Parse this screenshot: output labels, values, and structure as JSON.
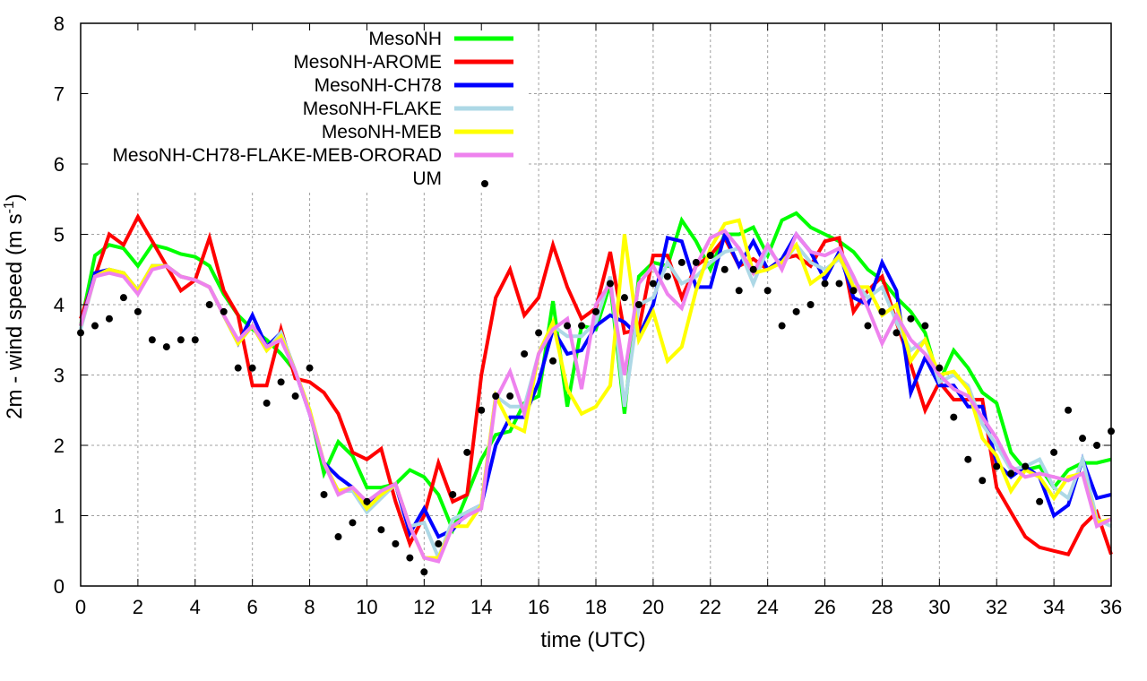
{
  "chart_data": {
    "type": "line",
    "title": "",
    "xlabel": "time (UTC)",
    "ylabel_main": "2m - wind speed  (m s",
    "ylabel_sup": "-1",
    "ylabel_close": ")",
    "xlim": [
      0,
      36
    ],
    "ylim": [
      0,
      8
    ],
    "xticks": [
      "0",
      "2",
      "4",
      "6",
      "8",
      "10",
      "12",
      "14",
      "16",
      "18",
      "20",
      "22",
      "24",
      "26",
      "28",
      "30",
      "32",
      "34",
      "36"
    ],
    "yticks": [
      "0",
      "1",
      "2",
      "3",
      "4",
      "5",
      "6",
      "7",
      "8"
    ],
    "grid": true,
    "legend_position": "top-left",
    "x": [
      0,
      0.5,
      1,
      1.5,
      2,
      2.5,
      3,
      3.5,
      4,
      4.5,
      5,
      5.5,
      6,
      6.5,
      7,
      7.5,
      8,
      8.5,
      9,
      9.5,
      10,
      10.5,
      11,
      11.5,
      12,
      12.5,
      13,
      13.5,
      14,
      14.5,
      15,
      15.5,
      16,
      16.5,
      17,
      17.5,
      18,
      18.5,
      19,
      19.5,
      20,
      20.5,
      21,
      21.5,
      22,
      22.5,
      23,
      23.5,
      24,
      24.5,
      25,
      25.5,
      26,
      26.5,
      27,
      27.5,
      28,
      28.5,
      29,
      29.5,
      30,
      30.5,
      31,
      31.5,
      32,
      32.5,
      33,
      33.5,
      34,
      34.5,
      35,
      35.5,
      36
    ],
    "series": [
      {
        "name": "MesoNH",
        "color": "#00ff00",
        "style": "line",
        "values": [
          3.7,
          4.7,
          4.85,
          4.8,
          4.55,
          4.85,
          4.8,
          4.72,
          4.68,
          4.55,
          4.15,
          3.85,
          3.65,
          3.5,
          3.3,
          3.05,
          2.5,
          1.6,
          2.05,
          1.85,
          1.4,
          1.4,
          1.45,
          1.65,
          1.55,
          1.3,
          0.8,
          1.3,
          1.8,
          2.15,
          2.2,
          2.6,
          2.7,
          4.05,
          2.55,
          3.7,
          3.65,
          4.3,
          2.45,
          4.4,
          4.6,
          4.55,
          5.2,
          4.9,
          4.5,
          5.0,
          5.0,
          5.1,
          4.7,
          5.2,
          5.3,
          5.1,
          5.0,
          4.9,
          4.75,
          4.5,
          4.35,
          4.1,
          3.9,
          3.6,
          2.9,
          3.35,
          3.1,
          2.75,
          2.6,
          1.9,
          1.65,
          1.7,
          1.4,
          1.65,
          1.75,
          1.75,
          1.8
        ]
      },
      {
        "name": "MesoNH-AROME",
        "color": "#ff0000",
        "style": "line",
        "values": [
          3.8,
          4.4,
          5.0,
          4.85,
          5.25,
          4.9,
          4.55,
          4.2,
          4.35,
          4.95,
          4.2,
          3.85,
          2.85,
          2.85,
          3.65,
          2.95,
          2.9,
          2.75,
          2.45,
          1.9,
          1.8,
          1.95,
          1.2,
          0.6,
          1.0,
          1.75,
          1.2,
          1.3,
          3.0,
          4.1,
          4.5,
          3.85,
          4.1,
          4.85,
          4.25,
          3.8,
          3.95,
          4.75,
          3.6,
          3.65,
          4.7,
          4.7,
          4.1,
          4.55,
          4.7,
          4.95,
          4.55,
          4.65,
          4.5,
          4.65,
          4.7,
          4.55,
          4.9,
          4.95,
          3.9,
          4.2,
          4.4,
          3.75,
          3.15,
          2.5,
          2.9,
          2.65,
          2.65,
          2.65,
          1.4,
          1.05,
          0.7,
          0.55,
          0.5,
          0.45,
          0.85,
          1.05,
          0.45
        ]
      },
      {
        "name": "MesoNH-CH78",
        "color": "#0000ff",
        "style": "line",
        "values": [
          3.7,
          4.45,
          4.5,
          4.45,
          4.2,
          4.55,
          4.55,
          4.4,
          4.35,
          4.25,
          3.85,
          3.45,
          3.85,
          3.4,
          3.6,
          3.05,
          2.45,
          1.75,
          1.55,
          1.4,
          1.15,
          1.3,
          1.45,
          0.75,
          1.1,
          0.7,
          0.8,
          1.05,
          1.15,
          2.0,
          2.4,
          2.4,
          2.9,
          3.65,
          3.3,
          3.35,
          3.7,
          3.85,
          3.75,
          3.55,
          4.0,
          4.95,
          4.9,
          4.25,
          4.25,
          5.0,
          4.55,
          4.9,
          4.5,
          4.65,
          5.0,
          4.75,
          4.35,
          4.75,
          4.1,
          4.0,
          4.6,
          4.2,
          2.75,
          3.25,
          2.85,
          2.85,
          2.55,
          2.55,
          1.75,
          1.55,
          1.7,
          1.55,
          1.0,
          1.15,
          1.8,
          1.25,
          1.3
        ]
      },
      {
        "name": "MesoNH-FLAKE",
        "color": "#add8e6",
        "style": "line",
        "values": [
          3.65,
          4.4,
          4.5,
          4.45,
          4.2,
          4.55,
          4.55,
          4.4,
          4.35,
          4.25,
          3.85,
          3.45,
          3.7,
          3.35,
          3.6,
          3.05,
          2.5,
          1.75,
          1.35,
          1.35,
          1.05,
          1.25,
          1.45,
          0.85,
          0.9,
          0.4,
          0.95,
          1.05,
          1.15,
          2.7,
          2.55,
          2.55,
          3.3,
          3.7,
          3.55,
          3.55,
          3.75,
          4.4,
          2.55,
          4.0,
          4.1,
          4.6,
          4.3,
          4.4,
          4.6,
          4.75,
          4.8,
          4.3,
          4.8,
          4.55,
          4.85,
          4.6,
          4.5,
          4.65,
          4.35,
          4.1,
          4.25,
          3.75,
          3.35,
          3.5,
          2.9,
          3.0,
          2.85,
          2.3,
          2.0,
          1.65,
          1.7,
          1.8,
          1.4,
          1.25,
          1.8,
          0.95,
          0.85
        ]
      },
      {
        "name": "MesoNH-MEB",
        "color": "#ffff00",
        "style": "line",
        "values": [
          3.7,
          4.4,
          4.5,
          4.45,
          4.2,
          4.55,
          4.55,
          4.4,
          4.35,
          4.25,
          3.85,
          3.45,
          3.7,
          3.35,
          3.55,
          3.05,
          2.5,
          1.75,
          1.35,
          1.4,
          1.1,
          1.3,
          1.45,
          0.85,
          0.4,
          0.4,
          0.85,
          0.85,
          1.15,
          2.7,
          2.3,
          2.2,
          3.3,
          3.75,
          2.8,
          2.45,
          2.55,
          2.85,
          5.0,
          3.5,
          3.9,
          3.2,
          3.4,
          4.2,
          4.8,
          5.15,
          5.2,
          4.45,
          4.5,
          4.6,
          4.85,
          4.3,
          4.45,
          4.7,
          4.25,
          4.25,
          3.85,
          4.0,
          3.2,
          3.5,
          3.0,
          3.05,
          2.8,
          2.1,
          1.85,
          1.35,
          1.65,
          1.55,
          1.25,
          1.55,
          1.6,
          0.9,
          0.95
        ]
      },
      {
        "name": "MesoNH-CH78-FLAKE-MEB-ORORAD",
        "color": "#ee82ee",
        "style": "line",
        "values": [
          3.7,
          4.4,
          4.45,
          4.4,
          4.15,
          4.5,
          4.55,
          4.4,
          4.35,
          4.25,
          3.85,
          3.5,
          3.7,
          3.4,
          3.5,
          3.05,
          2.45,
          1.75,
          1.3,
          1.4,
          1.2,
          1.35,
          1.45,
          0.85,
          0.4,
          0.35,
          0.85,
          1.0,
          1.1,
          2.65,
          3.05,
          2.45,
          3.3,
          3.65,
          3.8,
          2.8,
          4.0,
          4.3,
          3.0,
          4.3,
          4.55,
          4.15,
          3.95,
          4.55,
          4.95,
          5.05,
          4.8,
          4.45,
          4.85,
          4.5,
          5.0,
          4.75,
          4.7,
          4.8,
          4.4,
          3.95,
          3.45,
          3.85,
          3.5,
          3.3,
          3.0,
          2.8,
          2.7,
          2.4,
          2.1,
          1.7,
          1.55,
          1.6,
          1.55,
          1.5,
          1.6,
          0.85,
          0.95
        ]
      },
      {
        "name": "UM",
        "color": "#000000",
        "style": "points",
        "values": [
          3.6,
          3.7,
          3.8,
          4.1,
          3.9,
          3.5,
          3.4,
          3.5,
          3.5,
          4.0,
          3.9,
          3.1,
          3.1,
          2.6,
          2.9,
          2.7,
          3.1,
          1.3,
          0.7,
          0.9,
          1.2,
          0.8,
          0.6,
          0.4,
          0.2,
          0.6,
          1.3,
          1.9,
          2.5,
          2.7,
          2.7,
          3.3,
          3.6,
          3.2,
          3.7,
          3.7,
          3.9,
          4.3,
          4.1,
          4.0,
          4.3,
          4.4,
          4.6,
          4.6,
          4.7,
          4.5,
          4.2,
          4.5,
          4.2,
          3.7,
          3.9,
          4.0,
          4.3,
          4.3,
          4.2,
          3.7,
          3.9,
          3.6,
          3.8,
          3.7,
          3.1,
          2.4,
          1.8,
          1.5,
          1.7,
          1.6,
          1.7,
          1.2,
          1.9,
          2.5,
          2.1,
          2.0,
          2.2
        ]
      }
    ]
  }
}
